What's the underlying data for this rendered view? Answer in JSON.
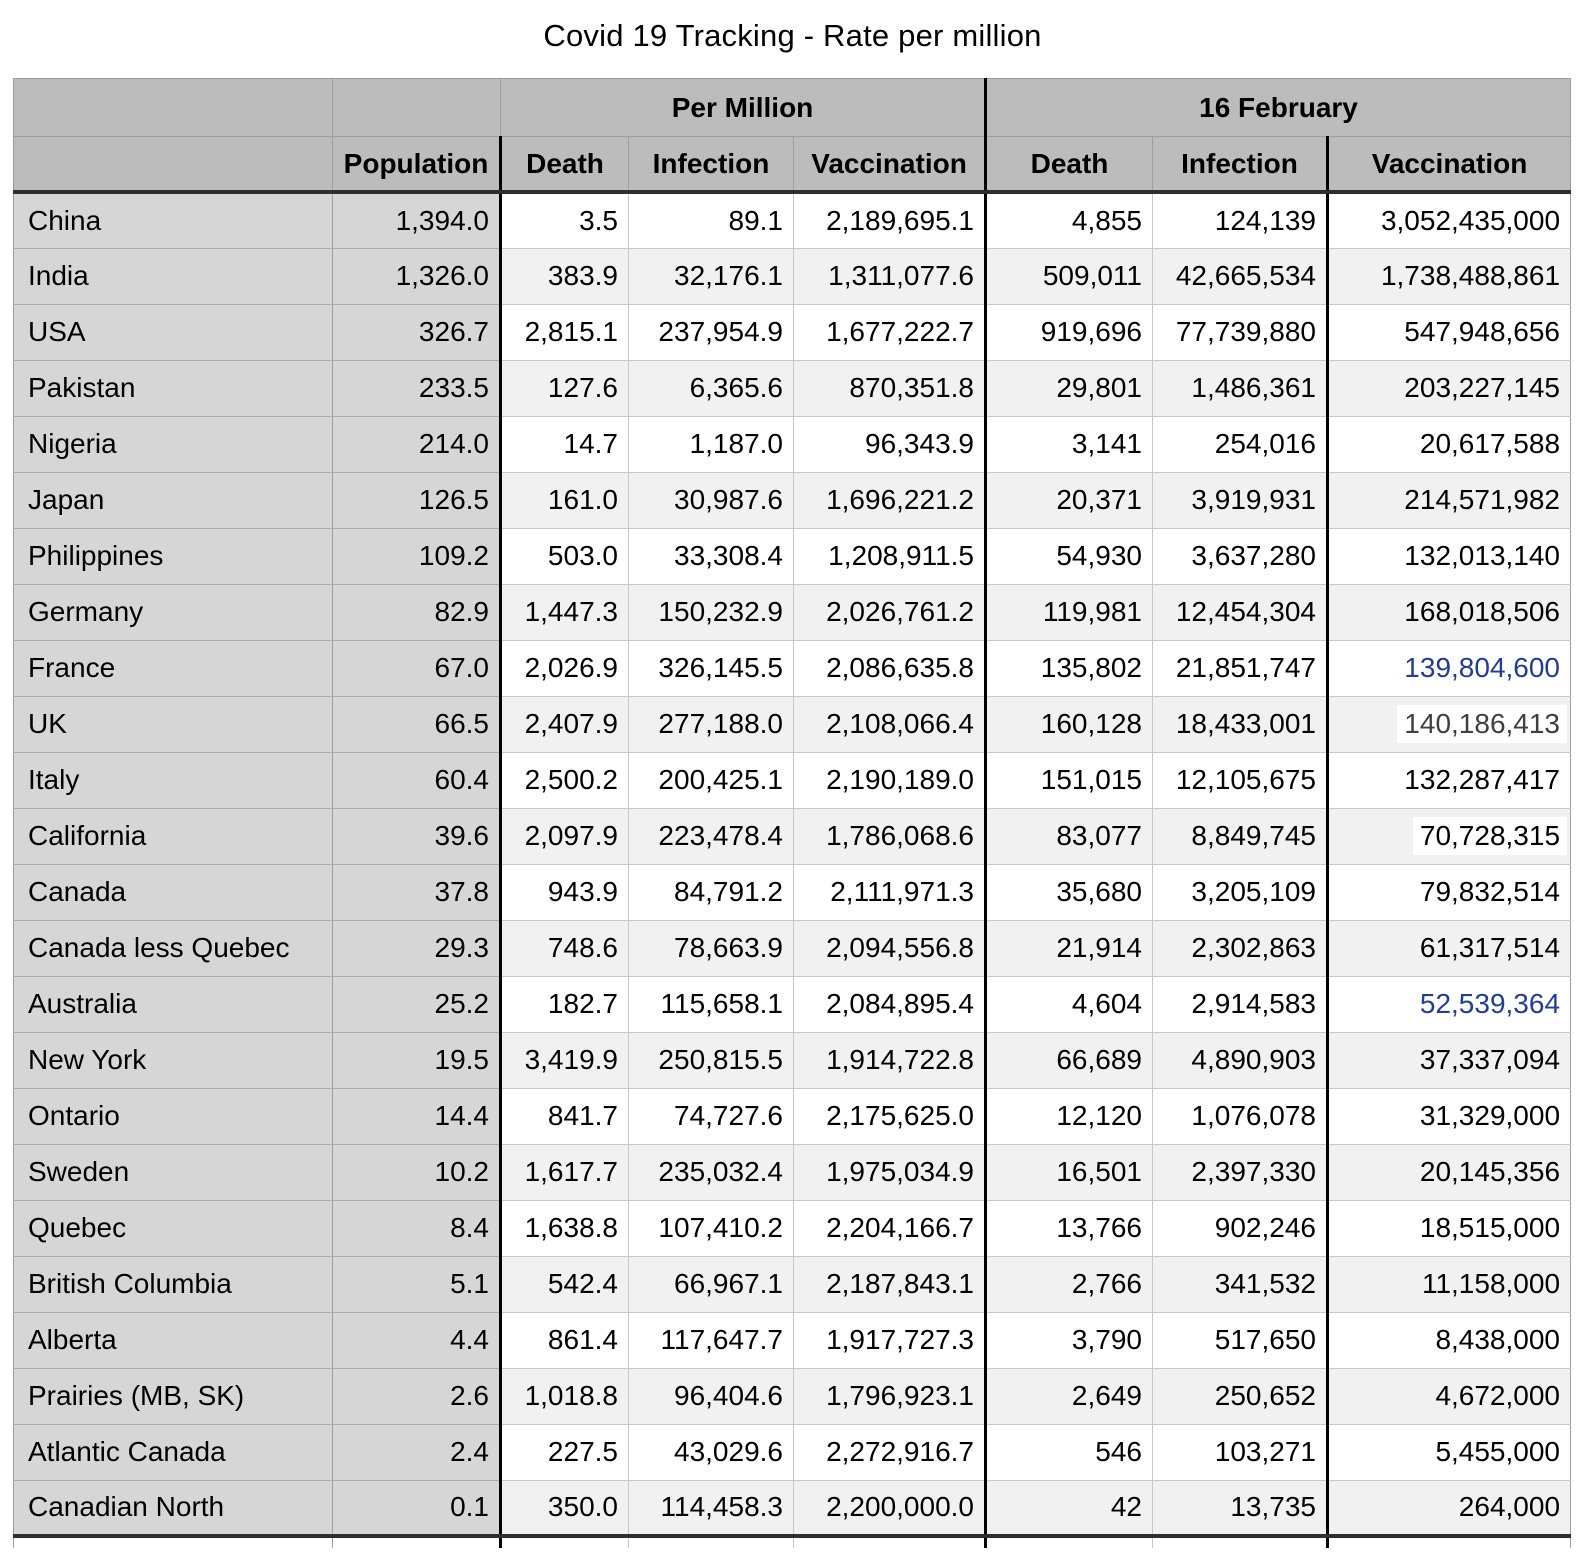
{
  "title": "Covid 19 Tracking - Rate per million",
  "chart_data": {
    "type": "table",
    "title": "Covid 19 Tracking - Rate per million",
    "column_groups": [
      {
        "label": "",
        "span": 2
      },
      {
        "label": "Per Million",
        "span": 3
      },
      {
        "label": "16 February",
        "span": 3
      }
    ],
    "columns": [
      "",
      "Population",
      "Death",
      "Infection",
      "Vaccination",
      "Death",
      "Infection",
      "Vaccination"
    ],
    "rows": [
      {
        "name": "China",
        "population": "1,394.0",
        "per_million": {
          "death": "3.5",
          "infection": "89.1",
          "vaccination": "2,189,695.1"
        },
        "feb16": {
          "death": "4,855",
          "infection": "124,139",
          "vaccination": "3,052,435,000"
        },
        "feb16_vaccination_style": "normal"
      },
      {
        "name": "India",
        "population": "1,326.0",
        "per_million": {
          "death": "383.9",
          "infection": "32,176.1",
          "vaccination": "1,311,077.6"
        },
        "feb16": {
          "death": "509,011",
          "infection": "42,665,534",
          "vaccination": "1,738,488,861"
        },
        "feb16_vaccination_style": "normal"
      },
      {
        "name": "USA",
        "population": "326.7",
        "per_million": {
          "death": "2,815.1",
          "infection": "237,954.9",
          "vaccination": "1,677,222.7"
        },
        "feb16": {
          "death": "919,696",
          "infection": "77,739,880",
          "vaccination": "547,948,656"
        },
        "feb16_vaccination_style": "normal"
      },
      {
        "name": "Pakistan",
        "population": "233.5",
        "per_million": {
          "death": "127.6",
          "infection": "6,365.6",
          "vaccination": "870,351.8"
        },
        "feb16": {
          "death": "29,801",
          "infection": "1,486,361",
          "vaccination": "203,227,145"
        },
        "feb16_vaccination_style": "normal"
      },
      {
        "name": "Nigeria",
        "population": "214.0",
        "per_million": {
          "death": "14.7",
          "infection": "1,187.0",
          "vaccination": "96,343.9"
        },
        "feb16": {
          "death": "3,141",
          "infection": "254,016",
          "vaccination": "20,617,588"
        },
        "feb16_vaccination_style": "normal"
      },
      {
        "name": "Japan",
        "population": "126.5",
        "per_million": {
          "death": "161.0",
          "infection": "30,987.6",
          "vaccination": "1,696,221.2"
        },
        "feb16": {
          "death": "20,371",
          "infection": "3,919,931",
          "vaccination": "214,571,982"
        },
        "feb16_vaccination_style": "normal"
      },
      {
        "name": "Philippines",
        "population": "109.2",
        "per_million": {
          "death": "503.0",
          "infection": "33,308.4",
          "vaccination": "1,208,911.5"
        },
        "feb16": {
          "death": "54,930",
          "infection": "3,637,280",
          "vaccination": "132,013,140"
        },
        "feb16_vaccination_style": "normal"
      },
      {
        "name": "Germany",
        "population": "82.9",
        "per_million": {
          "death": "1,447.3",
          "infection": "150,232.9",
          "vaccination": "2,026,761.2"
        },
        "feb16": {
          "death": "119,981",
          "infection": "12,454,304",
          "vaccination": "168,018,506"
        },
        "feb16_vaccination_style": "normal"
      },
      {
        "name": "France",
        "population": "67.0",
        "per_million": {
          "death": "2,026.9",
          "infection": "326,145.5",
          "vaccination": "2,086,635.8"
        },
        "feb16": {
          "death": "135,802",
          "infection": "21,851,747",
          "vaccination": "139,804,600"
        },
        "feb16_vaccination_style": "blue"
      },
      {
        "name": "UK",
        "population": "66.5",
        "per_million": {
          "death": "2,407.9",
          "infection": "277,188.0",
          "vaccination": "2,108,066.4"
        },
        "feb16": {
          "death": "160,128",
          "infection": "18,433,001",
          "vaccination": "140,186,413"
        },
        "feb16_vaccination_style": "highlight-dim"
      },
      {
        "name": "Italy",
        "population": "60.4",
        "per_million": {
          "death": "2,500.2",
          "infection": "200,425.1",
          "vaccination": "2,190,189.0"
        },
        "feb16": {
          "death": "151,015",
          "infection": "12,105,675",
          "vaccination": "132,287,417"
        },
        "feb16_vaccination_style": "normal"
      },
      {
        "name": "California",
        "population": "39.6",
        "per_million": {
          "death": "2,097.9",
          "infection": "223,478.4",
          "vaccination": "1,786,068.6"
        },
        "feb16": {
          "death": "83,077",
          "infection": "8,849,745",
          "vaccination": "70,728,315"
        },
        "feb16_vaccination_style": "highlight"
      },
      {
        "name": "Canada",
        "population": "37.8",
        "per_million": {
          "death": "943.9",
          "infection": "84,791.2",
          "vaccination": "2,111,971.3"
        },
        "feb16": {
          "death": "35,680",
          "infection": "3,205,109",
          "vaccination": "79,832,514"
        },
        "feb16_vaccination_style": "normal"
      },
      {
        "name": "Canada less Quebec",
        "population": "29.3",
        "per_million": {
          "death": "748.6",
          "infection": "78,663.9",
          "vaccination": "2,094,556.8"
        },
        "feb16": {
          "death": "21,914",
          "infection": "2,302,863",
          "vaccination": "61,317,514"
        },
        "feb16_vaccination_style": "normal"
      },
      {
        "name": "Australia",
        "population": "25.2",
        "per_million": {
          "death": "182.7",
          "infection": "115,658.1",
          "vaccination": "2,084,895.4"
        },
        "feb16": {
          "death": "4,604",
          "infection": "2,914,583",
          "vaccination": "52,539,364"
        },
        "feb16_vaccination_style": "blue"
      },
      {
        "name": "New York",
        "population": "19.5",
        "per_million": {
          "death": "3,419.9",
          "infection": "250,815.5",
          "vaccination": "1,914,722.8"
        },
        "feb16": {
          "death": "66,689",
          "infection": "4,890,903",
          "vaccination": "37,337,094"
        },
        "feb16_vaccination_style": "normal"
      },
      {
        "name": "Ontario",
        "population": "14.4",
        "per_million": {
          "death": "841.7",
          "infection": "74,727.6",
          "vaccination": "2,175,625.0"
        },
        "feb16": {
          "death": "12,120",
          "infection": "1,076,078",
          "vaccination": "31,329,000"
        },
        "feb16_vaccination_style": "normal"
      },
      {
        "name": "Sweden",
        "population": "10.2",
        "per_million": {
          "death": "1,617.7",
          "infection": "235,032.4",
          "vaccination": "1,975,034.9"
        },
        "feb16": {
          "death": "16,501",
          "infection": "2,397,330",
          "vaccination": "20,145,356"
        },
        "feb16_vaccination_style": "normal"
      },
      {
        "name": "Quebec",
        "population": "8.4",
        "per_million": {
          "death": "1,638.8",
          "infection": "107,410.2",
          "vaccination": "2,204,166.7"
        },
        "feb16": {
          "death": "13,766",
          "infection": "902,246",
          "vaccination": "18,515,000"
        },
        "feb16_vaccination_style": "normal"
      },
      {
        "name": "British Columbia",
        "population": "5.1",
        "per_million": {
          "death": "542.4",
          "infection": "66,967.1",
          "vaccination": "2,187,843.1"
        },
        "feb16": {
          "death": "2,766",
          "infection": "341,532",
          "vaccination": "11,158,000"
        },
        "feb16_vaccination_style": "normal"
      },
      {
        "name": "Alberta",
        "population": "4.4",
        "per_million": {
          "death": "861.4",
          "infection": "117,647.7",
          "vaccination": "1,917,727.3"
        },
        "feb16": {
          "death": "3,790",
          "infection": "517,650",
          "vaccination": "8,438,000"
        },
        "feb16_vaccination_style": "normal"
      },
      {
        "name": "Prairies (MB, SK)",
        "population": "2.6",
        "per_million": {
          "death": "1,018.8",
          "infection": "96,404.6",
          "vaccination": "1,796,923.1"
        },
        "feb16": {
          "death": "2,649",
          "infection": "250,652",
          "vaccination": "4,672,000"
        },
        "feb16_vaccination_style": "normal"
      },
      {
        "name": "Atlantic Canada",
        "population": "2.4",
        "per_million": {
          "death": "227.5",
          "infection": "43,029.6",
          "vaccination": "2,272,916.7"
        },
        "feb16": {
          "death": "546",
          "infection": "103,271",
          "vaccination": "5,455,000"
        },
        "feb16_vaccination_style": "normal"
      },
      {
        "name": "Canadian North",
        "population": "0.1",
        "per_million": {
          "death": "350.0",
          "infection": "114,458.3",
          "vaccination": "2,200,000.0"
        },
        "feb16": {
          "death": "42",
          "infection": "13,735",
          "vaccination": "264,000"
        },
        "feb16_vaccination_style": "normal"
      }
    ]
  },
  "colors": {
    "header_gray": "#bcbcbc",
    "label_gray": "#d6d6d6",
    "stripe_gray": "#f1f1f1",
    "grid_light": "#c7c7c7",
    "grid_mid": "#9e9e9e",
    "label_grid": "#ababab",
    "heavy_line": "#2e2e2e",
    "black_line": "#000000",
    "link_blue": "#1f3d99",
    "dim_text": "#3f3f3f",
    "highlight_white": "#ffffff"
  }
}
